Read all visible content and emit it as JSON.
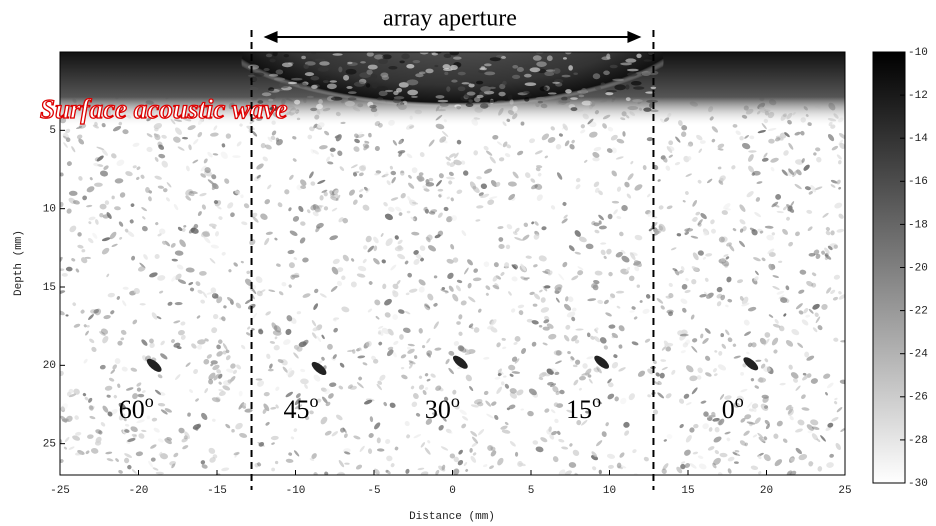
{
  "chart_data": {
    "type": "image",
    "title": "array aperture",
    "annotation": "Surface acoustic wave",
    "xlabel": "Distance (mm)",
    "ylabel": "Depth (mm)",
    "xlim": [
      -25,
      25
    ],
    "ylim": [
      27,
      0
    ],
    "xticks": [
      -25,
      -20,
      -15,
      -10,
      -5,
      0,
      5,
      10,
      15,
      20,
      25
    ],
    "yticks": [
      5,
      10,
      15,
      20,
      25
    ],
    "aperture": [
      -12.8,
      12.8
    ],
    "targets": {
      "x": [
        -19,
        -8.5,
        0.5,
        9.5,
        19
      ],
      "y": [
        20,
        20.2,
        19.8,
        19.8,
        19.9
      ],
      "labels": [
        "60",
        "45",
        "30",
        "15",
        "0"
      ],
      "sup": "o"
    },
    "colorbar": {
      "lim": [
        -30,
        -10
      ],
      "ticks": [
        -10,
        -12,
        -14,
        -16,
        -18,
        -20,
        -22,
        -24,
        -26,
        -28,
        -30
      ],
      "colors": [
        "#ffffff",
        "#000000"
      ]
    }
  }
}
